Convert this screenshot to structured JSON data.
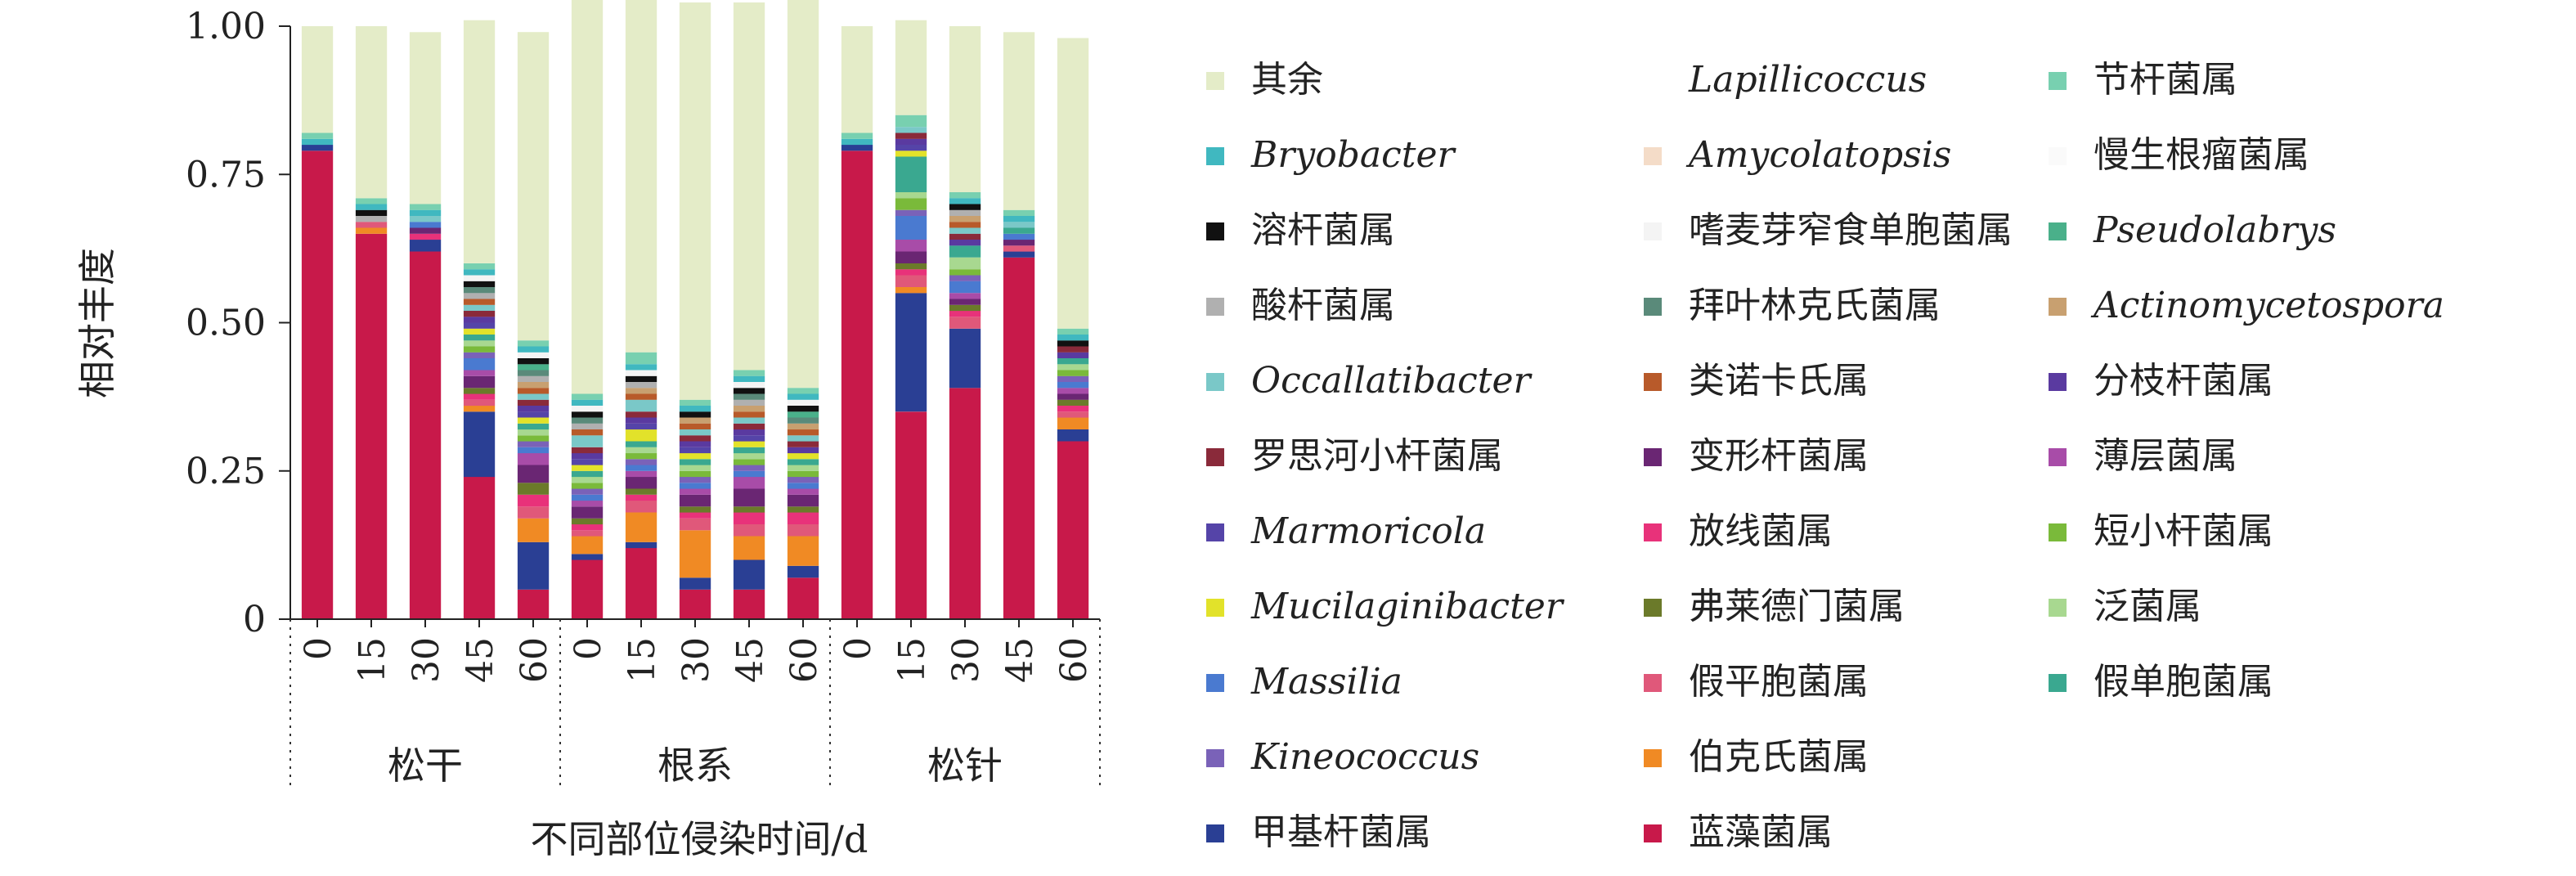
{
  "chart_data": {
    "type": "bar",
    "stacked": true,
    "ylabel": "相对丰度",
    "xlabel": "不同部位侵染时间/d",
    "ylim": [
      0,
      1
    ],
    "yticks": [
      "0",
      "0.25",
      "0.50",
      "0.75",
      "1.00"
    ],
    "groups": [
      {
        "name": "松干",
        "categories": [
          "0",
          "15",
          "30",
          "45",
          "60"
        ]
      },
      {
        "name": "根系",
        "categories": [
          "0",
          "15",
          "30",
          "45",
          "60"
        ]
      },
      {
        "name": "松针",
        "categories": [
          "0",
          "15",
          "30",
          "45",
          "60"
        ]
      }
    ],
    "series": [
      {
        "name": "蓝藻菌属",
        "color": "#c8194a",
        "values": [
          0.79,
          0.65,
          0.62,
          0.24,
          0.05,
          0.1,
          0.12,
          0.05,
          0.05,
          0.07,
          0.79,
          0.35,
          0.39,
          0.61,
          0.3
        ]
      },
      {
        "name": "甲基杆菌属",
        "color": "#2a3f94",
        "values": [
          0.01,
          0.0,
          0.02,
          0.11,
          0.08,
          0.01,
          0.01,
          0.02,
          0.05,
          0.02,
          0.01,
          0.2,
          0.1,
          0.01,
          0.02
        ]
      },
      {
        "name": "伯克氏菌属",
        "color": "#f08a24",
        "values": [
          0.0,
          0.01,
          0.0,
          0.01,
          0.04,
          0.03,
          0.05,
          0.08,
          0.04,
          0.05,
          0.0,
          0.01,
          0.0,
          0.0,
          0.02
        ]
      },
      {
        "name": "假平胞菌属",
        "color": "#e0587a",
        "values": [
          0.0,
          0.01,
          0.0,
          0.01,
          0.02,
          0.01,
          0.02,
          0.02,
          0.02,
          0.02,
          0.0,
          0.02,
          0.02,
          0.01,
          0.01
        ]
      },
      {
        "name": "放线菌属",
        "color": "#e8327a",
        "values": [
          0.0,
          0.0,
          0.01,
          0.01,
          0.02,
          0.01,
          0.01,
          0.01,
          0.02,
          0.02,
          0.0,
          0.01,
          0.01,
          0.0,
          0.01
        ]
      },
      {
        "name": "弗莱德门菌属",
        "color": "#6b7a2a",
        "values": [
          0.0,
          0.0,
          0.0,
          0.01,
          0.02,
          0.01,
          0.01,
          0.01,
          0.01,
          0.01,
          0.0,
          0.01,
          0.01,
          0.0,
          0.01
        ]
      },
      {
        "name": "变形杆菌属",
        "color": "#6a2673",
        "values": [
          0.0,
          0.0,
          0.01,
          0.02,
          0.03,
          0.02,
          0.02,
          0.02,
          0.03,
          0.02,
          0.0,
          0.02,
          0.01,
          0.01,
          0.01
        ]
      },
      {
        "name": "薄层菌属",
        "color": "#a84ca8",
        "values": [
          0.0,
          0.0,
          0.0,
          0.01,
          0.02,
          0.01,
          0.01,
          0.01,
          0.02,
          0.01,
          0.0,
          0.02,
          0.01,
          0.0,
          0.01
        ]
      },
      {
        "name": "Massilia",
        "color": "#4a7ad0",
        "values": [
          0.0,
          0.0,
          0.01,
          0.02,
          0.01,
          0.01,
          0.01,
          0.01,
          0.01,
          0.01,
          0.0,
          0.04,
          0.02,
          0.01,
          0.01
        ]
      },
      {
        "name": "Kineococcus",
        "color": "#7a62b8",
        "values": [
          0.0,
          0.0,
          0.0,
          0.01,
          0.01,
          0.01,
          0.01,
          0.01,
          0.01,
          0.01,
          0.0,
          0.01,
          0.01,
          0.0,
          0.01
        ]
      },
      {
        "name": "短小杆菌属",
        "color": "#7aba3a",
        "values": [
          0.0,
          0.0,
          0.0,
          0.01,
          0.01,
          0.01,
          0.01,
          0.01,
          0.01,
          0.01,
          0.0,
          0.02,
          0.01,
          0.0,
          0.01
        ]
      },
      {
        "name": "泛菌属",
        "color": "#a8d890",
        "values": [
          0.0,
          0.0,
          0.0,
          0.01,
          0.01,
          0.01,
          0.01,
          0.01,
          0.01,
          0.01,
          0.0,
          0.01,
          0.02,
          0.0,
          0.01
        ]
      },
      {
        "name": "假单胞菌属",
        "color": "#3aa890",
        "values": [
          0.0,
          0.0,
          0.0,
          0.01,
          0.01,
          0.01,
          0.01,
          0.01,
          0.01,
          0.01,
          0.0,
          0.06,
          0.02,
          0.01,
          0.01
        ]
      },
      {
        "name": "Mucilaginibacter",
        "color": "#e2e22a",
        "values": [
          0.0,
          0.0,
          0.0,
          0.01,
          0.01,
          0.01,
          0.02,
          0.01,
          0.01,
          0.01,
          0.0,
          0.01,
          0.0,
          0.0,
          0.0
        ]
      },
      {
        "name": "Marmoricola",
        "color": "#5544a8",
        "values": [
          0.0,
          0.0,
          0.0,
          0.01,
          0.01,
          0.01,
          0.01,
          0.01,
          0.01,
          0.0,
          0.0,
          0.01,
          0.0,
          0.0,
          0.0
        ]
      },
      {
        "name": "分枝杆菌属",
        "color": "#5a3aa0",
        "values": [
          0.0,
          0.0,
          0.0,
          0.01,
          0.01,
          0.01,
          0.01,
          0.01,
          0.01,
          0.01,
          0.0,
          0.01,
          0.01,
          0.0,
          0.01
        ]
      },
      {
        "name": "罗思河小杆菌属",
        "color": "#8a2a3a",
        "values": [
          0.0,
          0.0,
          0.0,
          0.01,
          0.01,
          0.01,
          0.01,
          0.01,
          0.01,
          0.01,
          0.0,
          0.01,
          0.01,
          0.0,
          0.01
        ]
      },
      {
        "name": "Occallatibacter",
        "color": "#7ac8c8",
        "values": [
          0.0,
          0.0,
          0.01,
          0.01,
          0.01,
          0.02,
          0.02,
          0.01,
          0.01,
          0.01,
          0.0,
          0.01,
          0.01,
          0.01,
          0.0
        ]
      },
      {
        "name": "类诺卡氏属",
        "color": "#b85a2a",
        "values": [
          0.0,
          0.0,
          0.0,
          0.01,
          0.01,
          0.01,
          0.01,
          0.01,
          0.01,
          0.01,
          0.0,
          0.0,
          0.01,
          0.0,
          0.0
        ]
      },
      {
        "name": "Actinomycetospora",
        "color": "#c8a070",
        "values": [
          0.0,
          0.0,
          0.0,
          0.0,
          0.01,
          0.0,
          0.01,
          0.01,
          0.01,
          0.01,
          0.0,
          0.0,
          0.01,
          0.0,
          0.0
        ]
      },
      {
        "name": "酸杆菌属",
        "color": "#b0b0b0",
        "values": [
          0.0,
          0.01,
          0.0,
          0.01,
          0.01,
          0.01,
          0.01,
          0.0,
          0.01,
          0.0,
          0.0,
          0.0,
          0.01,
          0.0,
          0.0
        ]
      },
      {
        "name": "拜叶林克氏菌属",
        "color": "#5a8a7a",
        "values": [
          0.0,
          0.0,
          0.0,
          0.01,
          0.01,
          0.01,
          0.0,
          0.0,
          0.01,
          0.01,
          0.0,
          0.0,
          0.0,
          0.0,
          0.0
        ]
      },
      {
        "name": "Pseudolabrys",
        "color": "#4ab08a",
        "values": [
          0.0,
          0.0,
          0.0,
          0.0,
          0.01,
          0.0,
          0.0,
          0.0,
          0.0,
          0.01,
          0.0,
          0.0,
          0.0,
          0.0,
          0.0
        ]
      },
      {
        "name": "溶杆菌属",
        "color": "#111111",
        "values": [
          0.0,
          0.01,
          0.0,
          0.01,
          0.01,
          0.01,
          0.01,
          0.01,
          0.01,
          0.01,
          0.0,
          0.0,
          0.01,
          0.0,
          0.01
        ]
      },
      {
        "name": "嗜麦芽窄食单胞菌属",
        "color": "#f4f4f4",
        "values": [
          0.0,
          0.0,
          0.0,
          0.01,
          0.01,
          0.01,
          0.01,
          0.0,
          0.01,
          0.01,
          0.0,
          0.0,
          0.0,
          0.0,
          0.0
        ]
      },
      {
        "name": "Bryobacter",
        "color": "#40b8c0",
        "values": [
          0.01,
          0.01,
          0.01,
          0.01,
          0.01,
          0.01,
          0.01,
          0.01,
          0.01,
          0.01,
          0.01,
          0.0,
          0.01,
          0.01,
          0.01
        ]
      },
      {
        "name": "Amycolatopsis",
        "color": "#f4dcc8",
        "values": [
          0.0,
          0.0,
          0.0,
          0.0,
          0.0,
          0.0,
          0.0,
          0.0,
          0.0,
          0.0,
          0.0,
          0.0,
          0.0,
          0.0,
          0.0
        ]
      },
      {
        "name": "慢生根瘤菌属",
        "color": "#fafafa",
        "values": [
          0.0,
          0.0,
          0.0,
          0.0,
          0.0,
          0.0,
          0.0,
          0.0,
          0.0,
          0.0,
          0.0,
          0.0,
          0.0,
          0.0,
          0.0
        ]
      },
      {
        "name": "Lapillicoccus",
        "color": "#ffffff",
        "values": [
          0.0,
          0.0,
          0.0,
          0.0,
          0.0,
          0.0,
          0.0,
          0.0,
          0.0,
          0.0,
          0.0,
          0.0,
          0.0,
          0.0,
          0.0
        ]
      },
      {
        "name": "节杆菌属",
        "color": "#78d0b0",
        "values": [
          0.01,
          0.01,
          0.01,
          0.01,
          0.01,
          0.01,
          0.02,
          0.01,
          0.01,
          0.01,
          0.01,
          0.02,
          0.01,
          0.01,
          0.01
        ]
      },
      {
        "name": "其余",
        "color": "#e4ecc8",
        "values": [
          0.18,
          0.29,
          0.29,
          0.41,
          0.52,
          0.68,
          0.61,
          0.67,
          0.62,
          0.66,
          0.18,
          0.16,
          0.28,
          0.3,
          0.49
        ]
      }
    ],
    "legend": {
      "columns": [
        [
          "其余",
          "Bryobacter",
          "溶杆菌属",
          "酸杆菌属",
          "Occallatibacter",
          "罗思河小杆菌属",
          "Marmoricola",
          "Mucilaginibacter",
          "Massilia",
          "Kineococcus",
          "甲基杆菌属"
        ],
        [
          "Lapillicoccus",
          "Amycolatopsis",
          "嗜麦芽窄食单胞菌属",
          "拜叶林克氏菌属",
          "类诺卡氏属",
          "变形杆菌属",
          "放线菌属",
          "弗莱德门菌属",
          "假平胞菌属",
          "伯克氏菌属",
          "蓝藻菌属"
        ],
        [
          "节杆菌属",
          "慢生根瘤菌属",
          "Pseudolabrys",
          "Actinomycetospora",
          "分枝杆菌属",
          "薄层菌属",
          "短小杆菌属",
          "泛菌属",
          "假单胞菌属"
        ]
      ],
      "italic": [
        "Bryobacter",
        "Occallatibacter",
        "Marmoricola",
        "Mucilaginibacter",
        "Massilia",
        "Kineococcus",
        "Lapillicoccus",
        "Amycolatopsis",
        "Pseudolabrys",
        "Actinomycetospora"
      ]
    }
  }
}
